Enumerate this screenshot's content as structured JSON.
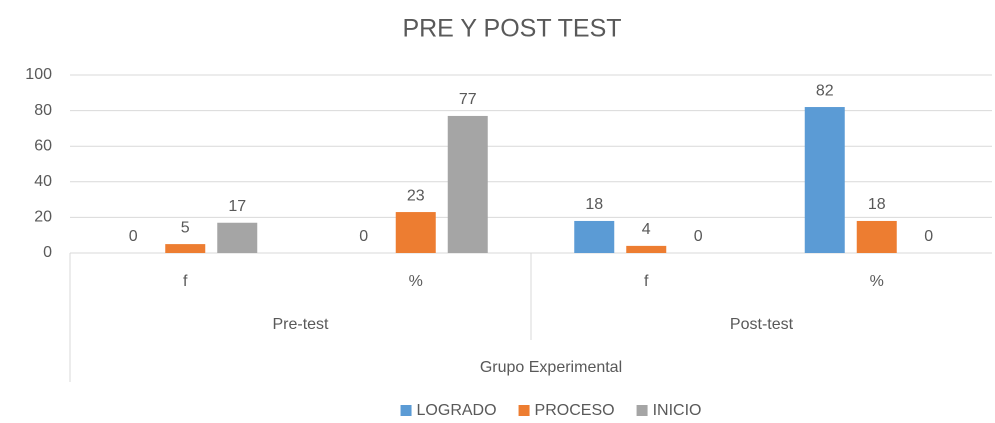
{
  "chart_data": {
    "type": "bar",
    "title": "PRE Y POST TEST",
    "group_label": "Grupo Experimental",
    "groups": [
      {
        "label": "Pre-test",
        "categories": [
          "f",
          "%"
        ]
      },
      {
        "label": "Post-test",
        "categories": [
          "f",
          "%"
        ]
      }
    ],
    "series": [
      {
        "name": "LOGRADO",
        "color": "#5b9bd5",
        "values": [
          0,
          0,
          18,
          82
        ]
      },
      {
        "name": "PROCESO",
        "color": "#ed7d31",
        "values": [
          5,
          23,
          4,
          18
        ]
      },
      {
        "name": "INICIO",
        "color": "#a5a5a5",
        "values": [
          17,
          77,
          0,
          0
        ]
      }
    ],
    "ylim": [
      0,
      100
    ],
    "yticks": [
      0,
      20,
      40,
      60,
      80,
      100
    ],
    "grid": true,
    "legend": "bottom"
  }
}
